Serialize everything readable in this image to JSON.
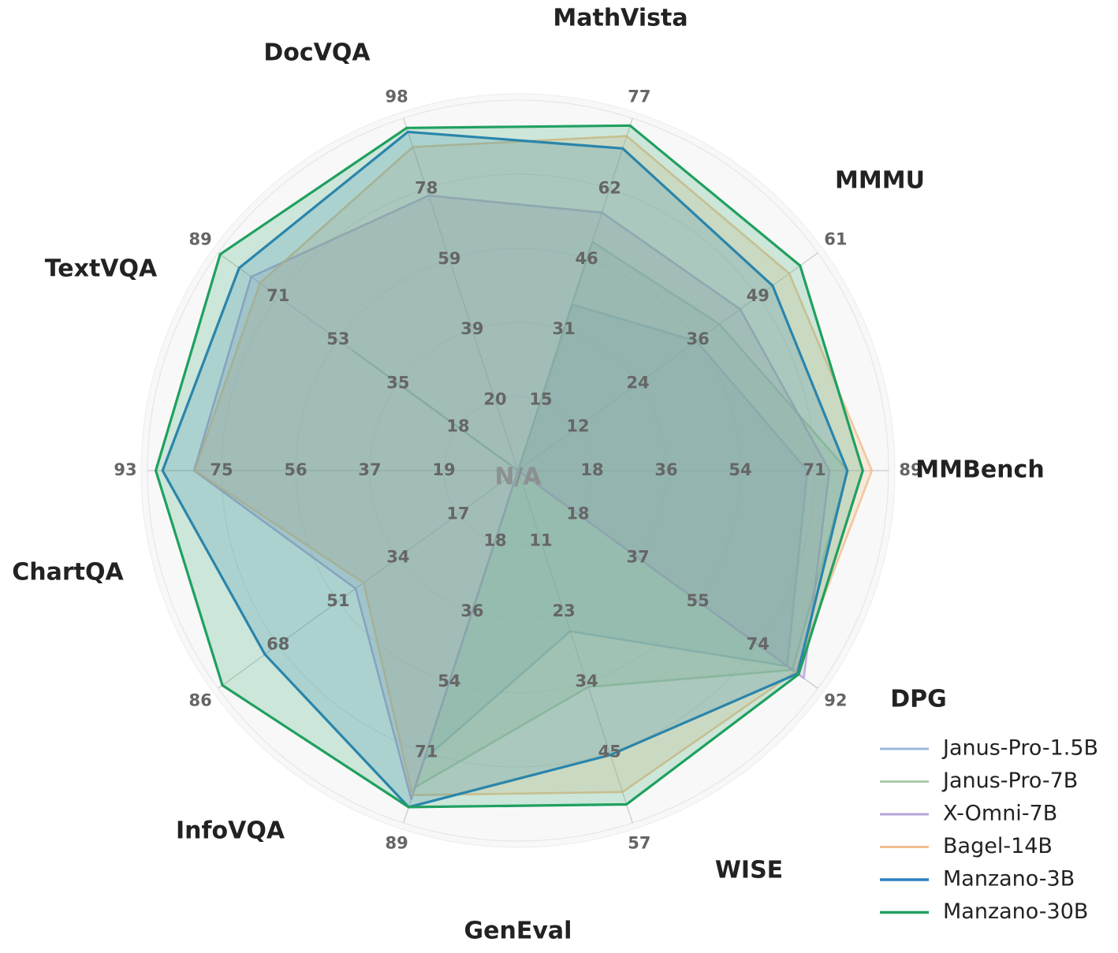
{
  "chart_data": {
    "type": "radar",
    "center_label": "N/A",
    "axes": [
      {
        "name": "MMBench",
        "ticks": [
          "18",
          "36",
          "54",
          "71",
          "89"
        ],
        "max": 89
      },
      {
        "name": "MMMU",
        "ticks": [
          "12",
          "24",
          "36",
          "49",
          "61"
        ],
        "max": 61
      },
      {
        "name": "MathVista",
        "ticks": [
          "15",
          "31",
          "46",
          "62",
          "77"
        ],
        "max": 77
      },
      {
        "name": "DocVQA",
        "ticks": [
          "20",
          "39",
          "59",
          "78",
          "98"
        ],
        "max": 98
      },
      {
        "name": "TextVQA",
        "ticks": [
          "18",
          "35",
          "53",
          "71",
          "89"
        ],
        "max": 89
      },
      {
        "name": "ChartQA",
        "ticks": [
          "19",
          "37",
          "56",
          "75",
          "93"
        ],
        "max": 93
      },
      {
        "name": "InfoVQA",
        "ticks": [
          "17",
          "34",
          "51",
          "68",
          "86"
        ],
        "max": 86
      },
      {
        "name": "GenEval",
        "ticks": [
          "18",
          "36",
          "54",
          "71",
          "89"
        ],
        "max": 89
      },
      {
        "name": "WISE",
        "ticks": [
          "11",
          "23",
          "34",
          "45",
          "57"
        ],
        "max": 57
      },
      {
        "name": "DPG",
        "ticks": [
          "18",
          "37",
          "55",
          "74",
          "92"
        ],
        "max": 92
      }
    ],
    "series": [
      {
        "name": "Janus-Pro-1.5B",
        "color": "#9bb8d8",
        "values": [
          69.5,
          36.3,
          36.3,
          0,
          35.1,
          0,
          0,
          73.0,
          26.0,
          82.6
        ]
      },
      {
        "name": "Janus-Pro-7B",
        "color": "#a8ccaa",
        "values": [
          79.2,
          41.0,
          50.0,
          0,
          49.1,
          0,
          0,
          80.0,
          35.0,
          84.2
        ]
      },
      {
        "name": "X-Omni-7B",
        "color": "#b9a4d8",
        "values": [
          74.8,
          45.2,
          56.4,
          76.5,
          79.2,
          81.3,
          46.6,
          83.0,
          0,
          87.7
        ]
      },
      {
        "name": "Bagel-14B",
        "color": "#f0c090",
        "values": [
          85.0,
          55.2,
          73.1,
          90.0,
          76.6,
          81.1,
          44.3,
          82.0,
          52.0,
          85.1
        ]
      },
      {
        "name": "Manzano-3B",
        "color": "#2e7fbf",
        "values": [
          79.1,
          51.8,
          70.4,
          94.2,
          82.8,
          89.2,
          72.6,
          85.0,
          46.0,
          85.8
        ]
      },
      {
        "name": "Manzano-30B",
        "color": "#20a060",
        "values": [
          82.8,
          57.4,
          75.4,
          95.3,
          88.4,
          90.9,
          84.8,
          85.0,
          54.0,
          86.1
        ]
      }
    ],
    "legend_position": "lower-right"
  }
}
